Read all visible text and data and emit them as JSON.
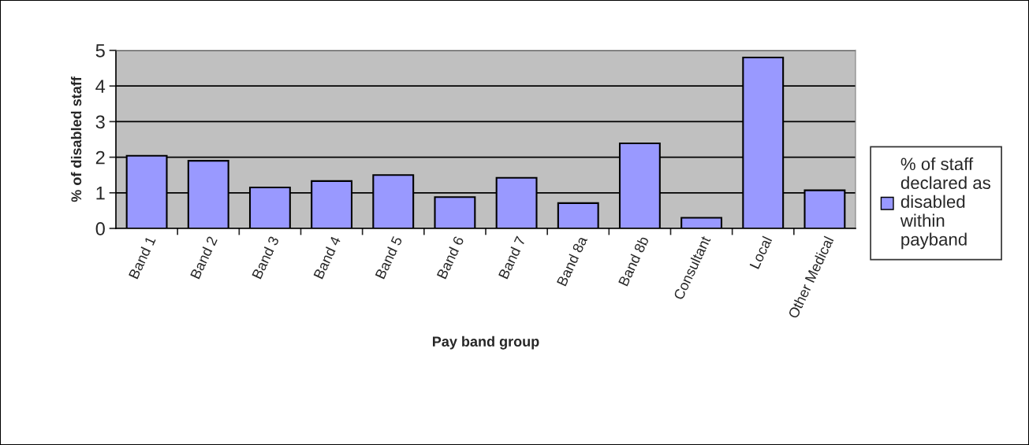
{
  "chart_data": {
    "type": "bar",
    "xlabel": "Pay band group",
    "ylabel": "% of disabled staff",
    "categories": [
      "Band 1",
      "Band 2",
      "Band 3",
      "Band 4",
      "Band 5",
      "Band 6",
      "Band 7",
      "Band 8a",
      "Band 8b",
      "Consultant",
      "Local",
      "Other Medical"
    ],
    "series": [
      {
        "name": "% of staff declared as disabled within payband",
        "color": "#9999ff",
        "values": [
          2.04,
          1.9,
          1.15,
          1.33,
          1.5,
          0.88,
          1.42,
          0.71,
          2.39,
          0.3,
          4.8,
          1.07
        ]
      }
    ],
    "ylim": [
      0,
      5
    ],
    "yticks": [
      0,
      1,
      2,
      3,
      4,
      5
    ],
    "grid": "y",
    "legend": "right"
  }
}
